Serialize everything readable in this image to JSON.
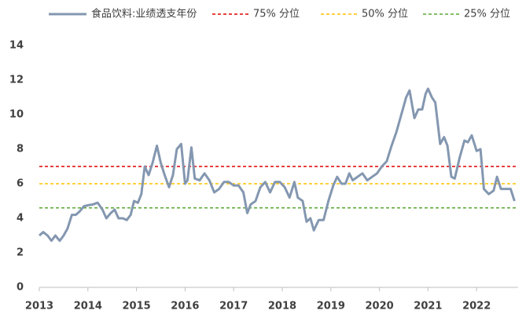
{
  "chart_data": {
    "type": "line",
    "x": [
      2013.0,
      2013.08,
      2013.17,
      2013.25,
      2013.33,
      2013.42,
      2013.5,
      2013.58,
      2013.67,
      2013.75,
      2013.83,
      2013.92,
      2014.0,
      2014.1,
      2014.2,
      2014.3,
      2014.38,
      2014.47,
      2014.55,
      2014.63,
      2014.72,
      2014.8,
      2014.88,
      2014.95,
      2015.03,
      2015.1,
      2015.17,
      2015.25,
      2015.33,
      2015.42,
      2015.5,
      2015.58,
      2015.67,
      2015.75,
      2015.83,
      2015.92,
      2016.0,
      2016.05,
      2016.13,
      2016.2,
      2016.3,
      2016.4,
      2016.5,
      2016.6,
      2016.7,
      2016.8,
      2016.9,
      2017.0,
      2017.1,
      2017.2,
      2017.28,
      2017.35,
      2017.45,
      2017.55,
      2017.65,
      2017.75,
      2017.85,
      2017.95,
      2018.05,
      2018.15,
      2018.25,
      2018.32,
      2018.42,
      2018.5,
      2018.58,
      2018.65,
      2018.75,
      2018.85,
      2018.95,
      2019.05,
      2019.13,
      2019.22,
      2019.3,
      2019.38,
      2019.45,
      2019.55,
      2019.65,
      2019.75,
      2019.85,
      2019.95,
      2020.05,
      2020.15,
      2020.25,
      2020.35,
      2020.45,
      2020.55,
      2020.62,
      2020.72,
      2020.8,
      2020.88,
      2020.95,
      2021.0,
      2021.08,
      2021.15,
      2021.25,
      2021.33,
      2021.4,
      2021.48,
      2021.55,
      2021.65,
      2021.75,
      2021.82,
      2021.9,
      2022.0,
      2022.08,
      2022.15,
      2022.25,
      2022.35,
      2022.42,
      2022.5,
      2022.6,
      2022.7,
      2022.78
    ],
    "series": [
      {
        "name": "食品饮料:业绩透支年份",
        "color": "#8497b0",
        "values": [
          3.0,
          3.2,
          3.0,
          2.7,
          3.0,
          2.7,
          3.0,
          3.4,
          4.2,
          4.2,
          4.4,
          4.7,
          4.75,
          4.8,
          4.9,
          4.5,
          4.0,
          4.3,
          4.5,
          4.0,
          4.0,
          3.9,
          4.2,
          5.0,
          4.9,
          5.4,
          7.0,
          6.5,
          7.2,
          8.2,
          7.2,
          6.5,
          5.8,
          6.5,
          8.0,
          8.3,
          6.0,
          6.2,
          8.1,
          6.3,
          6.2,
          6.6,
          6.2,
          5.5,
          5.7,
          6.1,
          6.1,
          5.9,
          5.9,
          5.5,
          4.3,
          4.8,
          5.0,
          5.8,
          6.1,
          5.5,
          6.1,
          6.1,
          5.8,
          5.2,
          6.1,
          5.2,
          5.0,
          3.8,
          4.0,
          3.3,
          3.9,
          3.9,
          5.0,
          5.9,
          6.4,
          6.0,
          6.0,
          6.6,
          6.2,
          6.4,
          6.6,
          6.2,
          6.4,
          6.6,
          7.0,
          7.3,
          8.2,
          9.0,
          10.0,
          11.0,
          11.4,
          9.8,
          10.3,
          10.3,
          11.2,
          11.5,
          11.0,
          10.7,
          8.3,
          8.7,
          8.2,
          6.4,
          6.3,
          7.5,
          8.5,
          8.4,
          8.8,
          7.9,
          8.0,
          5.7,
          5.4,
          5.6,
          6.4,
          5.7,
          5.7,
          5.7,
          5.0
        ]
      }
    ],
    "reference_lines": [
      {
        "name": "75% 分位",
        "value": 7.0,
        "color": "#e00000"
      },
      {
        "name": "50% 分位",
        "value": 6.0,
        "color": "#ffc000"
      },
      {
        "name": "25% 分位",
        "value": 4.6,
        "color": "#58a832"
      }
    ],
    "xlim": [
      2013,
      2022.85
    ],
    "xticks": [
      2013,
      2014,
      2015,
      2016,
      2017,
      2018,
      2019,
      2020,
      2021,
      2022
    ],
    "ylim": [
      0,
      14
    ],
    "yticks": [
      0,
      2,
      4,
      6,
      8,
      10,
      12,
      14
    ]
  }
}
